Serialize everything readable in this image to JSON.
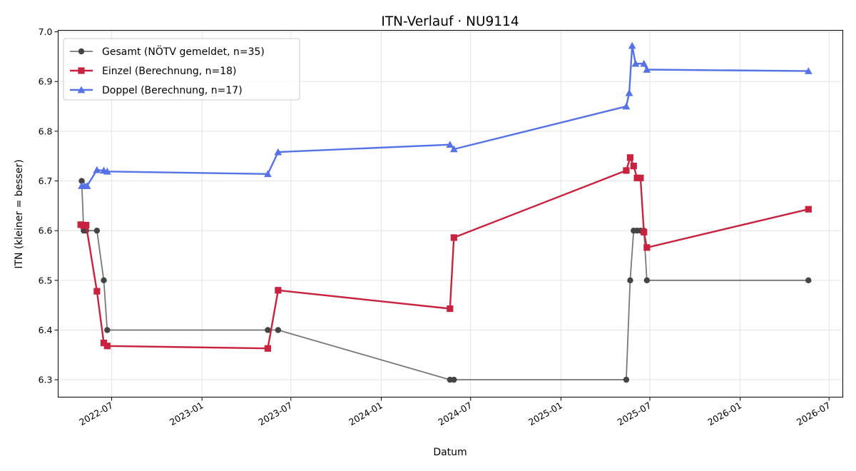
{
  "chart_data": {
    "type": "line",
    "title": "ITN-Verlauf · NU9114",
    "xlabel": "Datum",
    "ylabel": "ITN  (kleiner = besser)",
    "x_type": "date",
    "xlim": [
      "2022-03-14",
      "2026-07-29"
    ],
    "ylim": [
      6.265,
      7.003
    ],
    "x_ticks": [
      "2022-07-01",
      "2023-01-01",
      "2023-07-01",
      "2024-01-01",
      "2024-07-01",
      "2025-01-01",
      "2025-07-01",
      "2026-01-01",
      "2026-07-01"
    ],
    "x_tick_labels": [
      "2022-07",
      "2023-01",
      "2023-07",
      "2024-01",
      "2024-07",
      "2025-01",
      "2025-07",
      "2026-01",
      "2026-07"
    ],
    "y_ticks": [
      6.3,
      6.4,
      6.5,
      6.6,
      6.7,
      6.8,
      6.9,
      7.0
    ],
    "y_tick_labels": [
      "6.3",
      "6.4",
      "6.5",
      "6.6",
      "6.7",
      "6.8",
      "6.9",
      "7.0"
    ],
    "grid": true,
    "legend_position": "top-left",
    "series": [
      {
        "name": "Gesamt (NÖTV gemeldet, n=35)",
        "color": "#444444",
        "marker": "circle",
        "points": [
          [
            "2022-05-01",
            6.7
          ],
          [
            "2022-05-05",
            6.6
          ],
          [
            "2022-05-10",
            6.6
          ],
          [
            "2022-06-01",
            6.6
          ],
          [
            "2022-06-15",
            6.5
          ],
          [
            "2022-06-22",
            6.4
          ],
          [
            "2023-05-15",
            6.4
          ],
          [
            "2023-06-05",
            6.4
          ],
          [
            "2024-05-20",
            6.3
          ],
          [
            "2024-05-28",
            6.3
          ],
          [
            "2025-05-14",
            6.3
          ],
          [
            "2025-05-22",
            6.5
          ],
          [
            "2025-05-29",
            6.6
          ],
          [
            "2025-06-05",
            6.6
          ],
          [
            "2025-06-12",
            6.6
          ],
          [
            "2025-06-19",
            6.6
          ],
          [
            "2025-06-25",
            6.5
          ],
          [
            "2026-05-20",
            6.5
          ]
        ]
      },
      {
        "name": "Einzel (Berechnung, n=18)",
        "color": "#c8223f",
        "marker": "square",
        "points": [
          [
            "2022-04-29",
            6.612
          ],
          [
            "2022-05-05",
            6.61
          ],
          [
            "2022-05-10",
            6.611
          ],
          [
            "2022-06-01",
            6.478
          ],
          [
            "2022-06-15",
            6.374
          ],
          [
            "2022-06-22",
            6.368
          ],
          [
            "2023-05-15",
            6.363
          ],
          [
            "2023-06-05",
            6.48
          ],
          [
            "2024-05-20",
            6.443
          ],
          [
            "2024-05-28",
            6.586
          ],
          [
            "2025-05-14",
            6.721
          ],
          [
            "2025-05-22",
            6.747
          ],
          [
            "2025-05-29",
            6.73
          ],
          [
            "2025-06-05",
            6.706
          ],
          [
            "2025-06-12",
            6.706
          ],
          [
            "2025-06-19",
            6.597
          ],
          [
            "2025-06-25",
            6.566
          ],
          [
            "2026-05-20",
            6.643
          ]
        ]
      },
      {
        "name": "Doppel (Berechnung, n=17)",
        "color": "#5572e6",
        "marker": "triangle",
        "points": [
          [
            "2022-05-01",
            6.69
          ],
          [
            "2022-05-07",
            6.69
          ],
          [
            "2022-05-12",
            6.69
          ],
          [
            "2022-06-01",
            6.722
          ],
          [
            "2022-06-15",
            6.721
          ],
          [
            "2022-06-22",
            6.719
          ],
          [
            "2023-05-15",
            6.714
          ],
          [
            "2023-06-05",
            6.758
          ],
          [
            "2024-05-20",
            6.773
          ],
          [
            "2024-05-28",
            6.764
          ],
          [
            "2025-05-14",
            6.85
          ],
          [
            "2025-05-20",
            6.877
          ],
          [
            "2025-05-26",
            6.972
          ],
          [
            "2025-06-02",
            6.936
          ],
          [
            "2025-06-19",
            6.936
          ],
          [
            "2025-06-25",
            6.924
          ],
          [
            "2026-05-20",
            6.921
          ]
        ]
      }
    ]
  }
}
